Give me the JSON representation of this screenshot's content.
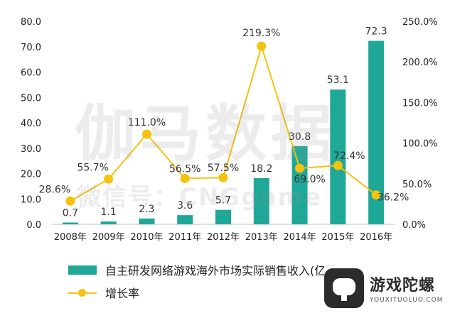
{
  "chart_data": {
    "type": "bar+line",
    "categories": [
      "2008年",
      "2009年",
      "2010年",
      "2011年",
      "2012年",
      "2013年",
      "2014年",
      "2015年",
      "2016年"
    ],
    "series": [
      {
        "name": "自主研发网络游戏海外市场实际销售收入(亿美元)",
        "type": "bar",
        "axis": "left",
        "values": [
          0.7,
          1.1,
          2.3,
          3.6,
          5.7,
          18.2,
          30.8,
          53.1,
          72.3
        ],
        "labels": [
          "0.7",
          "1.1",
          "2.3",
          "3.6",
          "5.7",
          "18.2",
          "30.8",
          "53.1",
          "72.3"
        ],
        "color": "#1fa898"
      },
      {
        "name": "增长率",
        "type": "line",
        "axis": "right",
        "values": [
          28.6,
          55.7,
          111.0,
          56.5,
          57.5,
          219.3,
          69.0,
          72.4,
          36.2
        ],
        "labels": [
          "28.6%",
          "55.7%",
          "111.0%",
          "56.5%",
          "57.5%",
          "219.3%",
          "69.0%",
          "72.4%",
          "36.2%"
        ],
        "color": "#f5c20f"
      }
    ],
    "y_left": {
      "min": 0,
      "max": 80,
      "ticks": [
        "0.0",
        "10.0",
        "20.0",
        "30.0",
        "40.0",
        "50.0",
        "60.0",
        "70.0",
        "80.0"
      ]
    },
    "y_right": {
      "min": 0,
      "max": 250,
      "ticks": [
        "0.0%",
        "50.0%",
        "100.0%",
        "150.0%",
        "200.0%",
        "250.0%"
      ]
    },
    "legend_position": "bottom-left"
  },
  "watermark": {
    "main": "伽马数据",
    "sub": "微信号：CNGgame"
  },
  "brand": {
    "name": "游戏陀螺",
    "url": "YOUXITUOLUO.COM"
  }
}
